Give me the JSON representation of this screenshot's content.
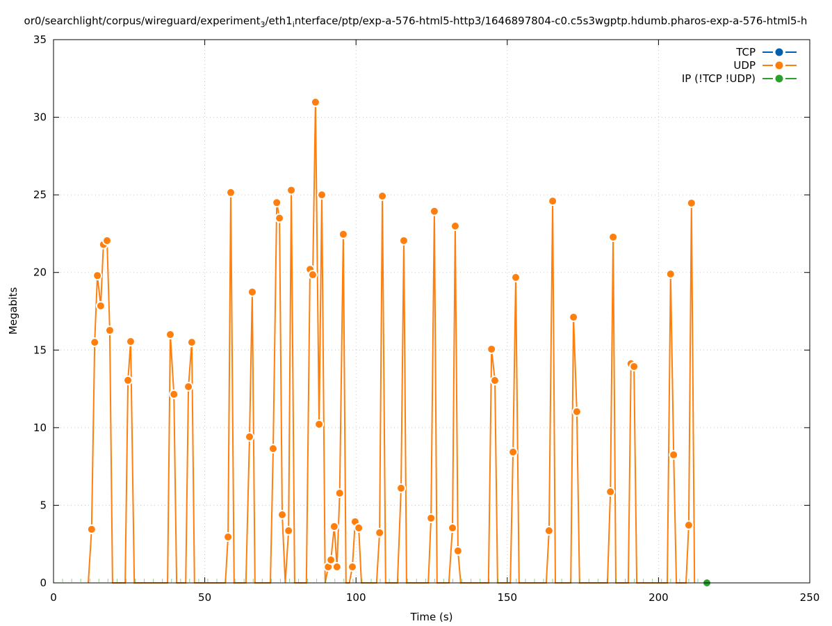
{
  "chart_data": {
    "type": "line",
    "title_parts": [
      {
        "text": "or0/searchlight/corpus/wireguard/experiment",
        "sub": false
      },
      {
        "text": "3",
        "sub": true
      },
      {
        "text": "/eth1",
        "sub": false
      },
      {
        "text": "i",
        "sub": true
      },
      {
        "text": "nterface/ptp/exp-a-576-html5-http3/1646897804-c0.c5s3wgptp.hdumb.pharos-exp-a-576-html5-h",
        "sub": false
      }
    ],
    "xlabel": "Time (s)",
    "ylabel": "Megabits",
    "xlim": [
      0,
      250
    ],
    "ylim": [
      0,
      35
    ],
    "xticks": [
      0,
      50,
      100,
      150,
      200,
      250
    ],
    "yticks": [
      0,
      5,
      10,
      15,
      20,
      25,
      30,
      35
    ],
    "grid": true,
    "legend_position": "top-right",
    "series": [
      {
        "name": "TCP",
        "color": "#0060ad",
        "points": []
      },
      {
        "name": "UDP",
        "color": "#ff7f0e",
        "points": [
          [
            11.5,
            0
          ],
          [
            12.6,
            3.45
          ],
          [
            13.6,
            15.5
          ],
          [
            14.5,
            19.8
          ],
          [
            15.6,
            17.85
          ],
          [
            16.5,
            21.8
          ],
          [
            17.7,
            22.05
          ],
          [
            18.6,
            16.27
          ],
          [
            19.5,
            0
          ],
          [
            23.7,
            0
          ],
          [
            24.6,
            13.05
          ],
          [
            25.5,
            15.55
          ],
          [
            26.7,
            0
          ],
          [
            37.7,
            0
          ],
          [
            38.6,
            16.0
          ],
          [
            39.8,
            12.15
          ],
          [
            40.7,
            0
          ],
          [
            43.7,
            0
          ],
          [
            44.6,
            12.64
          ],
          [
            45.7,
            15.5
          ],
          [
            46.6,
            0
          ],
          [
            56.8,
            0
          ],
          [
            57.7,
            2.96
          ],
          [
            58.6,
            25.15
          ],
          [
            59.7,
            0
          ],
          [
            63.6,
            0
          ],
          [
            64.8,
            9.41
          ],
          [
            65.7,
            18.74
          ],
          [
            66.6,
            0
          ],
          [
            71.7,
            0
          ],
          [
            72.6,
            8.65
          ],
          [
            73.8,
            24.5
          ],
          [
            74.7,
            23.5
          ],
          [
            75.6,
            4.39
          ],
          [
            76.6,
            0
          ],
          [
            77.7,
            3.36
          ],
          [
            78.6,
            25.3
          ],
          [
            79.7,
            0
          ],
          [
            83.6,
            0
          ],
          [
            84.8,
            20.2
          ],
          [
            85.7,
            19.85
          ],
          [
            86.6,
            30.97
          ],
          [
            87.8,
            10.22
          ],
          [
            88.7,
            25.0
          ],
          [
            89.8,
            0
          ],
          [
            90.8,
            1.03
          ],
          [
            91.7,
            1.48
          ],
          [
            92.8,
            3.63
          ],
          [
            93.7,
            1.03
          ],
          [
            94.6,
            5.78
          ],
          [
            95.8,
            22.46
          ],
          [
            96.7,
            0
          ],
          [
            97.8,
            0
          ],
          [
            98.8,
            1.03
          ],
          [
            99.7,
            3.94
          ],
          [
            100.9,
            3.54
          ],
          [
            101.8,
            0
          ],
          [
            106.8,
            0
          ],
          [
            107.8,
            3.23
          ],
          [
            108.7,
            24.92
          ],
          [
            109.8,
            0
          ],
          [
            113.7,
            0
          ],
          [
            114.9,
            6.1
          ],
          [
            115.8,
            22.05
          ],
          [
            116.7,
            0
          ],
          [
            123.9,
            0
          ],
          [
            124.8,
            4.17
          ],
          [
            125.9,
            23.94
          ],
          [
            126.8,
            0
          ],
          [
            130.7,
            0
          ],
          [
            131.9,
            3.54
          ],
          [
            132.8,
            22.99
          ],
          [
            133.7,
            2.06
          ],
          [
            134.6,
            0
          ],
          [
            143.8,
            0
          ],
          [
            144.8,
            15.06
          ],
          [
            145.9,
            13.04
          ],
          [
            146.8,
            0
          ],
          [
            151.0,
            0
          ],
          [
            151.9,
            8.43
          ],
          [
            152.8,
            19.68
          ],
          [
            153.9,
            0
          ],
          [
            162.9,
            0
          ],
          [
            163.8,
            3.36
          ],
          [
            165.0,
            24.6
          ],
          [
            165.9,
            0
          ],
          [
            171.0,
            0
          ],
          [
            171.9,
            17.12
          ],
          [
            173.0,
            11.03
          ],
          [
            173.9,
            0
          ],
          [
            183.1,
            0
          ],
          [
            184.1,
            5.87
          ],
          [
            185.0,
            22.28
          ],
          [
            185.9,
            0
          ],
          [
            190.0,
            0
          ],
          [
            190.9,
            14.12
          ],
          [
            191.9,
            13.94
          ],
          [
            192.8,
            0
          ],
          [
            202.9,
            0
          ],
          [
            204.0,
            19.9
          ],
          [
            205.0,
            8.25
          ],
          [
            205.9,
            0
          ],
          [
            209.1,
            0
          ],
          [
            210.0,
            3.72
          ],
          [
            210.9,
            24.47
          ],
          [
            211.9,
            0
          ]
        ]
      },
      {
        "name": "IP (!TCP  !UDP)",
        "color": "#2ca02c",
        "points": [
          [
            216.0,
            0
          ]
        ],
        "baseline_from": 0,
        "baseline_step": 3
      }
    ]
  }
}
